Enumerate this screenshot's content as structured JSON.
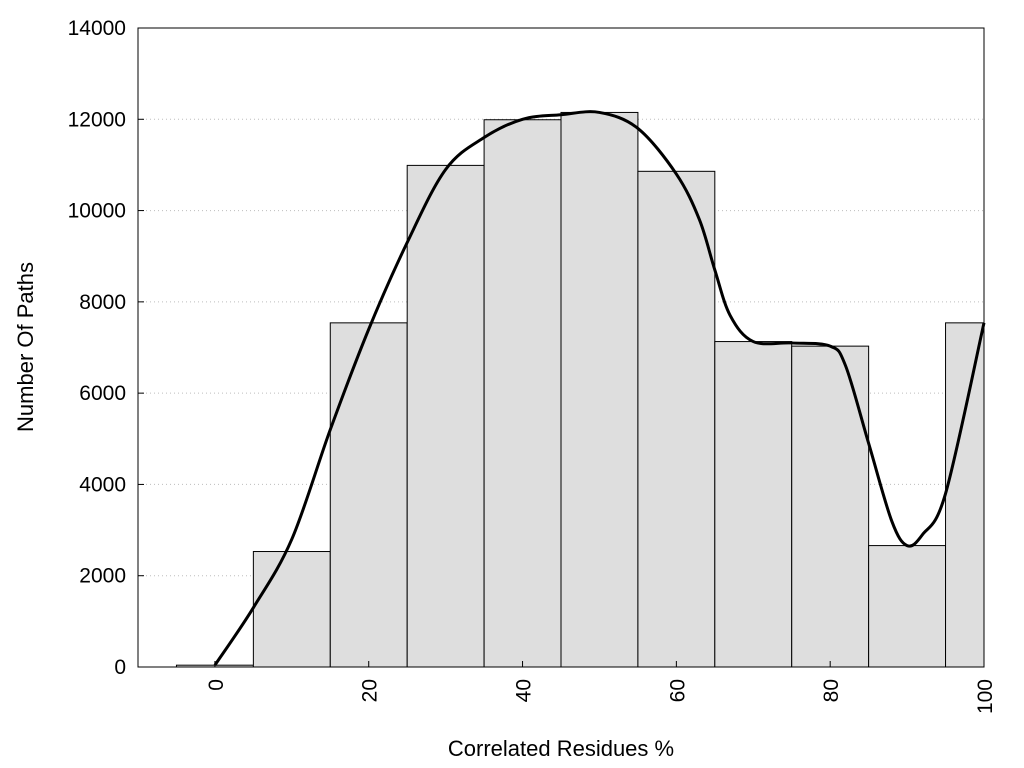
{
  "chart_data": {
    "type": "bar",
    "title": "",
    "xlabel": "Correlated Residues %",
    "ylabel": "Number Of Paths",
    "xlim": [
      -10,
      100
    ],
    "ylim": [
      0,
      14000
    ],
    "x_ticks": [
      0,
      20,
      40,
      60,
      80,
      100
    ],
    "x_tick_labels": [
      "0",
      "20",
      "40",
      "60",
      "80",
      "100"
    ],
    "y_ticks": [
      0,
      2000,
      4000,
      6000,
      8000,
      10000,
      12000,
      14000
    ],
    "y_tick_labels": [
      "0",
      "2000",
      "4000",
      "6000",
      "8000",
      "10000",
      "12000",
      "14000"
    ],
    "grid": "horizontal dotted",
    "bar_width": 10,
    "bars": [
      {
        "x": 0,
        "value": 40
      },
      {
        "x": 10,
        "value": 2530
      },
      {
        "x": 20,
        "value": 7540
      },
      {
        "x": 30,
        "value": 10990
      },
      {
        "x": 40,
        "value": 11990
      },
      {
        "x": 50,
        "value": 12150
      },
      {
        "x": 60,
        "value": 10860
      },
      {
        "x": 70,
        "value": 7130
      },
      {
        "x": 80,
        "value": 7030
      },
      {
        "x": 90,
        "value": 2660
      },
      {
        "x": 100,
        "value": 7540
      }
    ],
    "curve": {
      "x": [
        0,
        5,
        10,
        15,
        20,
        25,
        30,
        35,
        40,
        45,
        50,
        55,
        60,
        63,
        65,
        67,
        70,
        75,
        80,
        82,
        85,
        88,
        90,
        92,
        95,
        100
      ],
      "y": [
        40,
        1300,
        2800,
        5200,
        7400,
        9300,
        10900,
        11600,
        12000,
        12100,
        12150,
        11800,
        10800,
        9800,
        8700,
        7700,
        7130,
        7100,
        7030,
        6600,
        4900,
        3200,
        2660,
        2900,
        3800,
        7540
      ]
    },
    "colors": {
      "bar_fill": "#dedede",
      "bar_stroke": "#000000",
      "curve": "#000000",
      "grid": "#bdbdbd"
    }
  }
}
